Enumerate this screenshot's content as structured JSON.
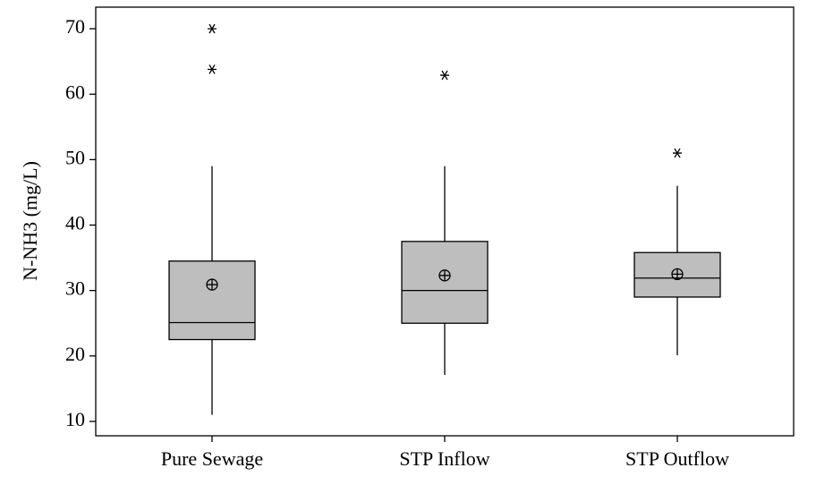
{
  "chart_data": {
    "type": "box",
    "y_label": "N-NH3 (mg/L)",
    "categories": [
      "Pure Sewage",
      "STP Inflow",
      "STP Outflow"
    ],
    "color": "#bebebe",
    "whisker_low": [
      11,
      17.1,
      20.1
    ],
    "q1": [
      22.5,
      25,
      29
    ],
    "median": [
      25.1,
      30,
      31.9
    ],
    "q3": [
      34.5,
      37.5,
      35.8
    ],
    "whisker_high": [
      49,
      49,
      46
    ],
    "mean": [
      30.9,
      32.3,
      32.5
    ],
    "outliers": [
      [
        70,
        63.8
      ],
      [
        62.9
      ],
      [
        51
      ]
    ],
    "ylim": [
      7.8,
      73.3
    ],
    "yticks": [
      10,
      20,
      30,
      40,
      50,
      60,
      70
    ]
  }
}
